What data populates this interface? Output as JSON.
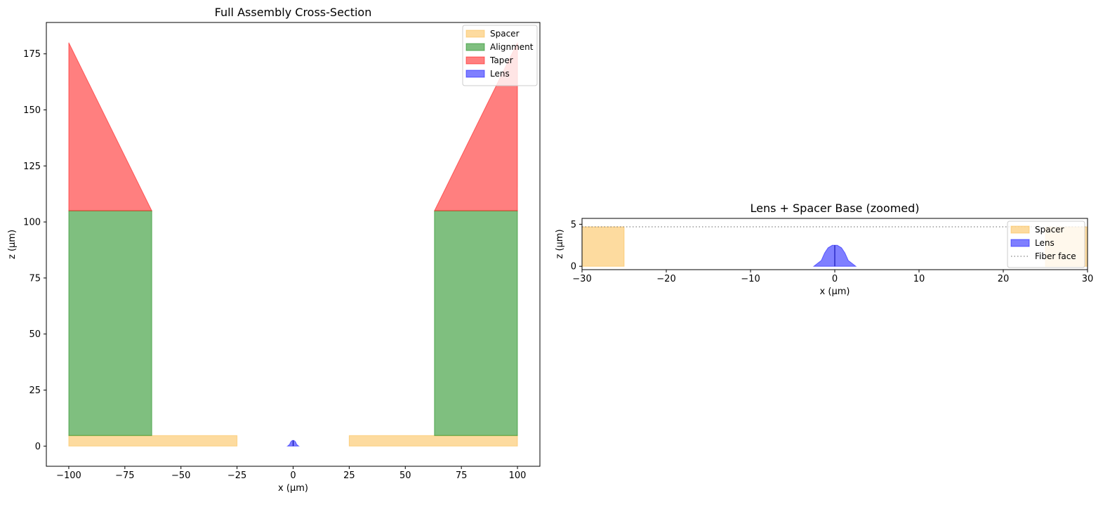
{
  "chart_data": [
    {
      "type": "area",
      "title": "Full Assembly Cross-Section",
      "xlabel": "x (µm)",
      "ylabel": "z (µm)",
      "xlim": [
        -110,
        110
      ],
      "ylim": [
        -9,
        189
      ],
      "xticks": [
        -100,
        -75,
        -50,
        -25,
        0,
        25,
        50,
        75,
        100
      ],
      "yticks": [
        0,
        25,
        50,
        75,
        100,
        125,
        150,
        175
      ],
      "xtick_labels": [
        "−100",
        "−75",
        "−50",
        "−25",
        "0",
        "25",
        "50",
        "75",
        "100"
      ],
      "ytick_labels": [
        "0",
        "25",
        "50",
        "75",
        "100",
        "125",
        "150",
        "175"
      ],
      "grid": false,
      "legend_position": "top-right",
      "series": [
        {
          "name": "Spacer",
          "color": "#fbb83f",
          "polygons": [
            [
              [
                -100,
                0
              ],
              [
                -25,
                0
              ],
              [
                -25,
                4.7
              ],
              [
                -100,
                4.7
              ]
            ],
            [
              [
                25,
                0
              ],
              [
                100,
                0
              ],
              [
                100,
                4.7
              ],
              [
                25,
                4.7
              ]
            ]
          ]
        },
        {
          "name": "Alignment",
          "color": "#008000",
          "polygons": [
            [
              [
                -100,
                4.7
              ],
              [
                -63,
                4.7
              ],
              [
                -63,
                105
              ],
              [
                -100,
                105
              ]
            ],
            [
              [
                63,
                4.7
              ],
              [
                100,
                4.7
              ],
              [
                100,
                105
              ],
              [
                63,
                105
              ]
            ]
          ]
        },
        {
          "name": "Taper",
          "color": "#ff0000",
          "polygons": [
            [
              [
                -100,
                105
              ],
              [
                -63,
                105
              ],
              [
                -100,
                180
              ]
            ],
            [
              [
                63,
                105
              ],
              [
                100,
                105
              ],
              [
                100,
                180
              ]
            ]
          ]
        },
        {
          "name": "Lens",
          "color": "#0000ff",
          "polygons": [
            [
              [
                -2.5,
                0
              ],
              [
                -1.6,
                0.7
              ],
              [
                -1.2,
                1.6
              ],
              [
                -0.8,
                2.2
              ],
              [
                -0.3,
                2.5
              ],
              [
                0,
                2.5
              ],
              [
                0.3,
                2.5
              ],
              [
                0.8,
                2.2
              ],
              [
                1.2,
                1.6
              ],
              [
                1.6,
                0.7
              ],
              [
                2.5,
                0
              ],
              [
                0,
                0
              ]
            ]
          ]
        }
      ]
    },
    {
      "type": "area",
      "title": "Lens + Spacer Base (zoomed)",
      "xlabel": "x (µm)",
      "ylabel": "z (µm)",
      "xlim": [
        -30,
        30
      ],
      "ylim": [
        -0.4,
        5.7
      ],
      "xticks": [
        -30,
        -20,
        -10,
        0,
        10,
        20,
        30
      ],
      "yticks": [
        0,
        5
      ],
      "xtick_labels": [
        "−30",
        "−20",
        "−10",
        "0",
        "10",
        "20",
        "30"
      ],
      "ytick_labels": [
        "0",
        "5"
      ],
      "grid": false,
      "legend_position": "top-right",
      "series": [
        {
          "name": "Spacer",
          "color": "#fbb83f",
          "polygons": [
            [
              [
                -30,
                0
              ],
              [
                -25,
                0
              ],
              [
                -25,
                4.7
              ],
              [
                -30,
                4.7
              ]
            ],
            [
              [
                25,
                0
              ],
              [
                30,
                0
              ],
              [
                30,
                4.7
              ],
              [
                25,
                4.7
              ]
            ]
          ]
        },
        {
          "name": "Lens",
          "color": "#0000ff",
          "polygons": [
            [
              [
                -2.5,
                0
              ],
              [
                -1.6,
                0.7
              ],
              [
                -1.2,
                1.6
              ],
              [
                -0.8,
                2.2
              ],
              [
                -0.3,
                2.5
              ],
              [
                0,
                2.5
              ],
              [
                0.3,
                2.5
              ],
              [
                0.8,
                2.2
              ],
              [
                1.2,
                1.6
              ],
              [
                1.6,
                0.7
              ],
              [
                2.5,
                0
              ],
              [
                0,
                0
              ]
            ]
          ]
        },
        {
          "name": "Fiber face",
          "color": "#808080",
          "style": "dotted",
          "line": [
            [
              -30,
              4.7
            ],
            [
              30,
              4.7
            ]
          ]
        }
      ]
    }
  ]
}
